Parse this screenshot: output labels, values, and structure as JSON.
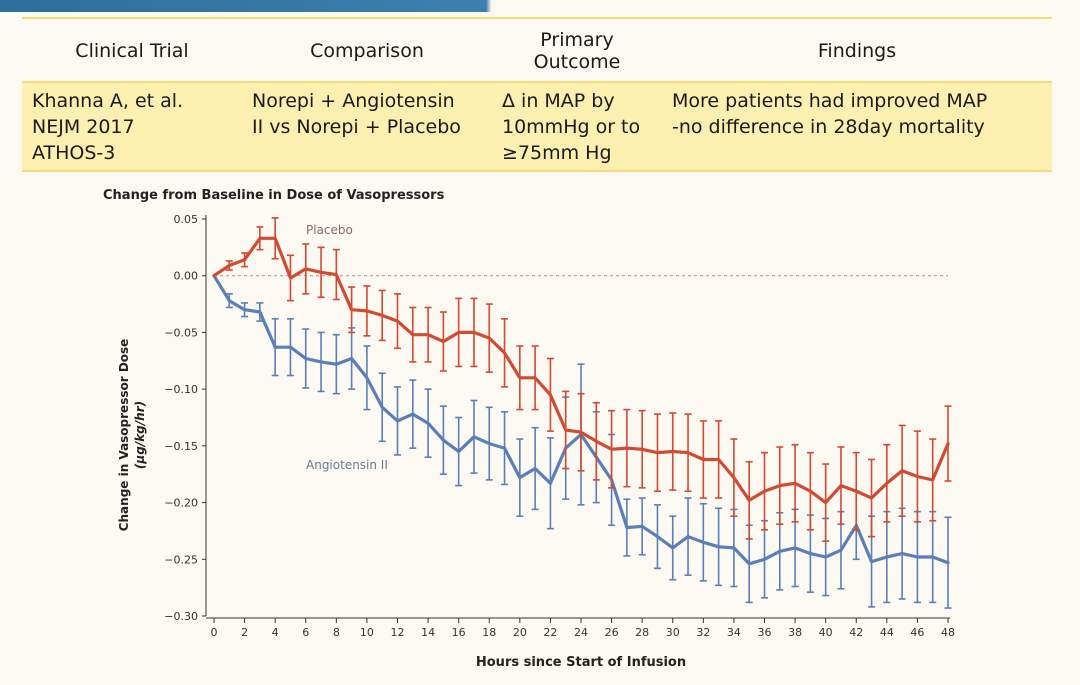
{
  "table": {
    "headers": [
      "Clinical Trial",
      "Comparison",
      "Primary\nOutcome",
      "Findings"
    ],
    "row": [
      "Khanna A, et al.\nNEJM 2017\nATHOS-3",
      "Norepi + Angiotensin\nII vs Norepi + Placebo",
      "Δ in MAP by\n10mmHg or to\n≥75mm Hg",
      "More patients had improved MAP\n-no difference in 28day mortality"
    ]
  },
  "chart_data": {
    "type": "line",
    "title": "Change from Baseline in Dose of Vasopressors",
    "xlabel": "Hours since Start of Infusion",
    "ylabel_line1": "Change in Vasopressor Dose",
    "ylabel_line2": "(µg/kg/hr)",
    "xlim": [
      0,
      48
    ],
    "ylim": [
      -0.3,
      0.05
    ],
    "xticks": [
      0,
      2,
      4,
      6,
      8,
      10,
      12,
      14,
      16,
      18,
      20,
      22,
      24,
      26,
      28,
      30,
      32,
      34,
      36,
      38,
      40,
      42,
      44,
      46,
      48
    ],
    "ytick_labels": [
      "0.05",
      "0.00",
      "−0.05",
      "−0.10",
      "−0.15",
      "−0.20",
      "−0.25",
      "−0.30"
    ],
    "yticks": [
      0.05,
      0,
      -0.05,
      -0.1,
      -0.15,
      -0.2,
      -0.25,
      -0.3
    ],
    "reference_line": 0,
    "grid": false,
    "error_bars": true,
    "series": [
      {
        "name": "Placebo",
        "color": "#d14a32",
        "x": [
          0,
          1,
          2,
          3,
          4,
          5,
          6,
          7,
          8,
          9,
          10,
          11,
          12,
          13,
          14,
          15,
          16,
          17,
          18,
          19,
          20,
          21,
          22,
          23,
          24,
          25,
          26,
          27,
          28,
          29,
          30,
          31,
          32,
          33,
          34,
          35,
          36,
          37,
          38,
          39,
          40,
          41,
          42,
          43,
          44,
          45,
          46,
          47,
          48
        ],
        "y": [
          0.0,
          0.009,
          0.014,
          0.033,
          0.033,
          -0.002,
          0.006,
          0.003,
          0.001,
          -0.03,
          -0.031,
          -0.035,
          -0.04,
          -0.052,
          -0.052,
          -0.058,
          -0.05,
          -0.05,
          -0.055,
          -0.068,
          -0.09,
          -0.09,
          -0.105,
          -0.136,
          -0.138,
          -0.146,
          -0.153,
          -0.152,
          -0.153,
          -0.156,
          -0.155,
          -0.156,
          -0.162,
          -0.162,
          -0.178,
          -0.198,
          -0.19,
          -0.185,
          -0.183,
          -0.19,
          -0.2,
          -0.185,
          -0.19,
          -0.196,
          -0.183,
          -0.172,
          -0.177,
          -0.18,
          -0.148
        ],
        "err": [
          0.0,
          0.004,
          0.006,
          0.01,
          0.018,
          0.02,
          0.022,
          0.022,
          0.022,
          0.02,
          0.022,
          0.022,
          0.024,
          0.024,
          0.024,
          0.026,
          0.03,
          0.03,
          0.03,
          0.03,
          0.028,
          0.028,
          0.032,
          0.034,
          0.034,
          0.034,
          0.034,
          0.034,
          0.034,
          0.034,
          0.034,
          0.034,
          0.034,
          0.034,
          0.034,
          0.034,
          0.034,
          0.034,
          0.034,
          0.034,
          0.034,
          0.034,
          0.034,
          0.034,
          0.034,
          0.04,
          0.04,
          0.036,
          0.033
        ]
      },
      {
        "name": "Angiotensin II",
        "color": "#5a7fb8",
        "x": [
          0,
          1,
          2,
          3,
          4,
          5,
          6,
          7,
          8,
          9,
          10,
          11,
          12,
          13,
          14,
          15,
          16,
          17,
          18,
          19,
          20,
          21,
          22,
          23,
          24,
          25,
          26,
          27,
          28,
          29,
          30,
          31,
          32,
          33,
          34,
          35,
          36,
          37,
          38,
          39,
          40,
          41,
          42,
          43,
          44,
          45,
          46,
          47,
          48
        ],
        "y": [
          0.0,
          -0.022,
          -0.03,
          -0.032,
          -0.063,
          -0.063,
          -0.073,
          -0.076,
          -0.078,
          -0.073,
          -0.09,
          -0.116,
          -0.128,
          -0.122,
          -0.13,
          -0.145,
          -0.155,
          -0.142,
          -0.148,
          -0.152,
          -0.178,
          -0.17,
          -0.183,
          -0.152,
          -0.14,
          -0.16,
          -0.18,
          -0.222,
          -0.221,
          -0.23,
          -0.24,
          -0.23,
          -0.235,
          -0.239,
          -0.24,
          -0.254,
          -0.25,
          -0.243,
          -0.24,
          -0.245,
          -0.248,
          -0.242,
          -0.22,
          -0.252,
          -0.248,
          -0.245,
          -0.248,
          -0.248,
          -0.253
        ],
        "err": [
          0.0,
          0.006,
          0.006,
          0.008,
          0.025,
          0.025,
          0.026,
          0.026,
          0.026,
          0.027,
          0.028,
          0.03,
          0.03,
          0.03,
          0.03,
          0.03,
          0.03,
          0.032,
          0.032,
          0.032,
          0.034,
          0.036,
          0.04,
          0.045,
          0.062,
          0.04,
          0.04,
          0.025,
          0.025,
          0.028,
          0.028,
          0.034,
          0.034,
          0.034,
          0.034,
          0.034,
          0.034,
          0.034,
          0.034,
          0.034,
          0.034,
          0.034,
          0.03,
          0.04,
          0.04,
          0.04,
          0.04,
          0.04,
          0.04
        ]
      }
    ],
    "series_labels": [
      "Placebo",
      "Angiotensin II"
    ]
  }
}
